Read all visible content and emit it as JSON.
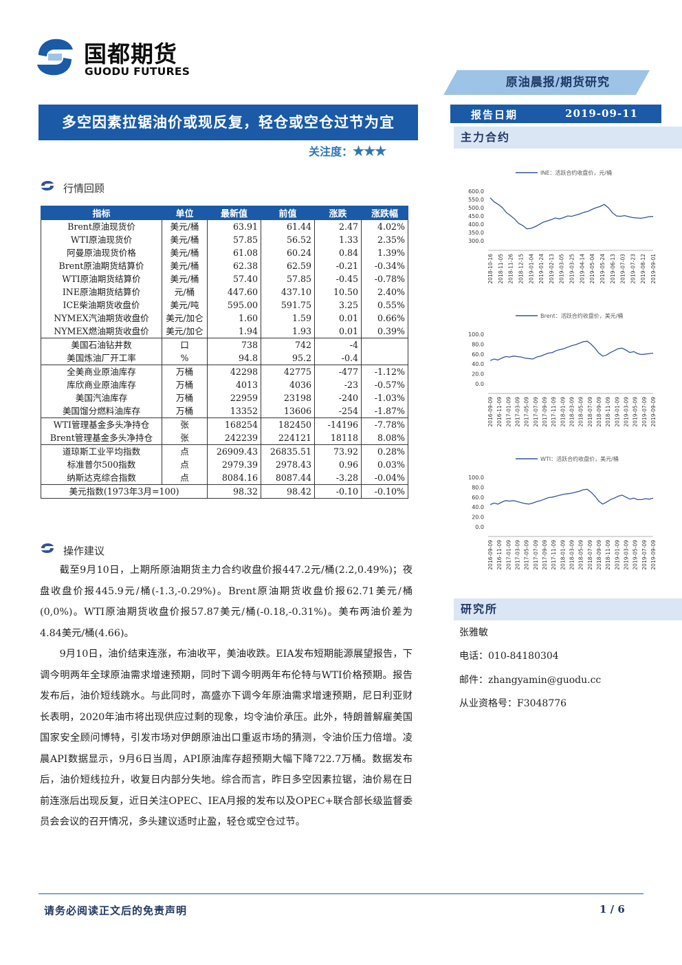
{
  "header": {
    "logo_cn": "国都期货",
    "logo_en": "GUODU FUTURES",
    "banner": "原油晨报/期货研究",
    "title": "多空因素拉锯油价或现反复，轻仓或空仓过节为宜",
    "attention_label": "关注度：",
    "attention_stars": "★★★",
    "date_label": "报告日期",
    "date_value": "2019-09-11",
    "main_contract": "主力合约"
  },
  "section_review": {
    "title": "行情回顾"
  },
  "table": {
    "headers": [
      "指标",
      "单位",
      "最新值",
      "前值",
      "涨跌",
      "涨跌幅"
    ],
    "rows": [
      [
        "Brent原油现货价",
        "美元/桶",
        "63.91",
        "61.44",
        "2.47",
        "4.02%"
      ],
      [
        "WTI原油现货价",
        "美元/桶",
        "57.85",
        "56.52",
        "1.33",
        "2.35%"
      ],
      [
        "阿曼原油现货价格",
        "美元/桶",
        "61.08",
        "60.24",
        "0.84",
        "1.39%"
      ],
      [
        "Brent原油期货结算价",
        "美元/桶",
        "62.38",
        "62.59",
        "-0.21",
        "-0.34%"
      ],
      [
        "WTI原油期货结算价",
        "美元/桶",
        "57.40",
        "57.85",
        "-0.45",
        "-0.78%"
      ],
      [
        "INE原油期货结算价",
        "元/桶",
        "447.60",
        "437.10",
        "10.50",
        "2.40%"
      ],
      [
        "ICE柴油期货收盘价",
        "美元/吨",
        "595.00",
        "591.75",
        "3.25",
        "0.55%"
      ],
      [
        "NYMEX汽油期货收盘价",
        "美元/加仑",
        "1.60",
        "1.59",
        "0.01",
        "0.66%"
      ],
      [
        "NYMEX燃油期货收盘价",
        "美元/加仑",
        "1.94",
        "1.93",
        "0.01",
        "0.39%"
      ],
      [
        "美国石油钻井数",
        "口",
        "738",
        "742",
        "-4",
        ""
      ],
      [
        "美国炼油厂开工率",
        "%",
        "94.8",
        "95.2",
        "-0.4",
        ""
      ],
      [
        "全美商业原油库存",
        "万桶",
        "42298",
        "42775",
        "-477",
        "-1.12%"
      ],
      [
        "库欣商业原油库存",
        "万桶",
        "4013",
        "4036",
        "-23",
        "-0.57%"
      ],
      [
        "美国汽油库存",
        "万桶",
        "22959",
        "23198",
        "-240",
        "-1.03%"
      ],
      [
        "美国馏分燃料油库存",
        "万桶",
        "13352",
        "13606",
        "-254",
        "-1.87%"
      ],
      [
        "WTI管理基金多头净持仓",
        "张",
        "168254",
        "182450",
        "-14196",
        "-7.78%"
      ],
      [
        "Brent管理基金多头净持仓",
        "张",
        "242239",
        "224121",
        "18118",
        "8.08%"
      ],
      [
        "道琼斯工业平均指数",
        "点",
        "26909.43",
        "26835.51",
        "73.92",
        "0.28%"
      ],
      [
        "标准普尔500指数",
        "点",
        "2979.39",
        "2978.43",
        "0.96",
        "0.03%"
      ],
      [
        "纳斯达克综合指数",
        "点",
        "8084.16",
        "8087.44",
        "-3.28",
        "-0.04%"
      ],
      [
        "美元指数(1973年3月=100)",
        "",
        "98.32",
        "98.42",
        "-0.10",
        "-0.10%"
      ]
    ]
  },
  "section_advice": {
    "title": "操作建议"
  },
  "paragraphs": [
    "截至9月10日，上期所原油期货主力合约收盘价报447.2元/桶(2.2,0.49%)；夜盘收盘价报445.9元/桶(-1.3,-0.29%)。Brent原油期货收盘价报62.71美元/桶(0,0%)。WTI原油期货收盘价报57.87美元/桶(-0.18,-0.31%)。美布两油价差为4.84美元/桶(4.66)。",
    "9月10日，油价结束连涨，布油收平，美油收跌。EIA发布短期能源展望报告，下调今明两年全球原油需求增速预期，同时下调今明两年布伦特与WTI价格预期。报告发布后，油价短线跳水。与此同时，高盛亦下调今年原油需求增速预期，尼日利亚财长表明，2020年油市将出现供应过剩的现象，均令油价承压。此外，特朗普解雇美国国家安全顾问博特，引发市场对伊朗原油出口重返市场的猜测，令油价压力倍增。凌晨API数据显示，9月6日当周，API原油库存超预期大幅下降722.7万桶。数据发布后，油价短线拉升，收复日内部分失地。综合而言，昨日多空因素拉锯，油价易在日前连涨后出现反复，近日关注OPEC、IEA月报的发布以及OPEC+联合部长级监督委员会会议的召开情况，多头建议适时止盈，轻仓或空仓过节。"
  ],
  "chart_data": [
    {
      "type": "line",
      "title": "",
      "series": [
        {
          "name": "INE：活跃合约收盘价，元/桶",
          "color": "#2f5597",
          "values": [
            560,
            535,
            520,
            500,
            470,
            452,
            432,
            405,
            392,
            372,
            375,
            385,
            398,
            412,
            420,
            428,
            438,
            432,
            440,
            450,
            448,
            455,
            462,
            472,
            478,
            490,
            500,
            508,
            520,
            500,
            470,
            450,
            448,
            452,
            446,
            440,
            438,
            436,
            440,
            446,
            447
          ]
        }
      ],
      "x_ticks": [
        "2018-10-16",
        "2018-11-05",
        "2018-11-26",
        "2018-12-15",
        "2019-01-04",
        "2019-01-24",
        "2019-02-13",
        "2019-03-05",
        "2019-03-25",
        "2019-04-14",
        "2019-05-04",
        "2019-05-24",
        "2019-06-13",
        "2019-07-03",
        "2019-07-23",
        "2019-08-12",
        "2019-09-01"
      ],
      "y_ticks": [
        "600.0",
        "550.0",
        "500.0",
        "450.0",
        "400.0",
        "350.0",
        "300.0"
      ],
      "ylim": [
        300,
        600
      ]
    },
    {
      "type": "line",
      "title": "",
      "series": [
        {
          "name": "Brent：活跃合约收盘价，美元/桶",
          "color": "#2f5597",
          "values": [
            47,
            50,
            48,
            52,
            55,
            54,
            56,
            55,
            54,
            52,
            51,
            50,
            54,
            56,
            59,
            62,
            63,
            67,
            69,
            71,
            74,
            77,
            79,
            82,
            85,
            86,
            80,
            72,
            62,
            56,
            58,
            63,
            67,
            71,
            72,
            68,
            63,
            65,
            61,
            59,
            60,
            61,
            62
          ]
        }
      ],
      "x_ticks": [
        "2016-09-09",
        "2016-11-09",
        "2017-01-09",
        "2017-03-09",
        "2017-05-09",
        "2017-07-09",
        "2017-09-09",
        "2017-11-09",
        "2018-01-09",
        "2018-03-09",
        "2018-05-09",
        "2018-07-09",
        "2018-09-09",
        "2018-11-09",
        "2019-01-09",
        "2019-03-09",
        "2019-05-09",
        "2019-07-09",
        "2019-09-09"
      ],
      "y_ticks": [
        "100.0",
        "80.0",
        "60.0",
        "40.0",
        "20.0",
        "0.0"
      ],
      "ylim": [
        0,
        100
      ]
    },
    {
      "type": "line",
      "title": "",
      "series": [
        {
          "name": "WTI：活跃合约收盘价，美元/桶",
          "color": "#2f5597",
          "values": [
            45,
            48,
            46,
            50,
            53,
            52,
            53,
            51,
            49,
            47,
            46,
            48,
            51,
            53,
            56,
            59,
            60,
            62,
            64,
            66,
            67,
            68,
            70,
            72,
            75,
            76,
            70,
            62,
            52,
            46,
            50,
            55,
            58,
            62,
            64,
            60,
            56,
            58,
            55,
            55,
            57,
            56,
            58
          ]
        }
      ],
      "x_ticks": [
        "2016-09-09",
        "2016-11-09",
        "2017-01-09",
        "2017-03-09",
        "2017-05-09",
        "2017-07-09",
        "2017-09-09",
        "2017-11-09",
        "2018-01-09",
        "2018-03-09",
        "2018-05-09",
        "2018-07-09",
        "2018-09-09",
        "2018-11-09",
        "2019-01-09",
        "2019-03-09",
        "2019-05-09",
        "2019-07-09",
        "2019-09-09"
      ],
      "y_ticks": [
        "100.0",
        "80.0",
        "60.0",
        "40.0",
        "20.0",
        "0.0"
      ],
      "ylim": [
        0,
        100
      ]
    }
  ],
  "research": {
    "title": "研究所",
    "name": "张雅敏",
    "phone": "电话：010-84180304",
    "email": "邮件：zhangyamin@guodu.cc",
    "license": "从业资格号：F3048776"
  },
  "footer": {
    "disclaimer": "请务必阅读正文后的免责声明",
    "page": "1 / 6"
  }
}
